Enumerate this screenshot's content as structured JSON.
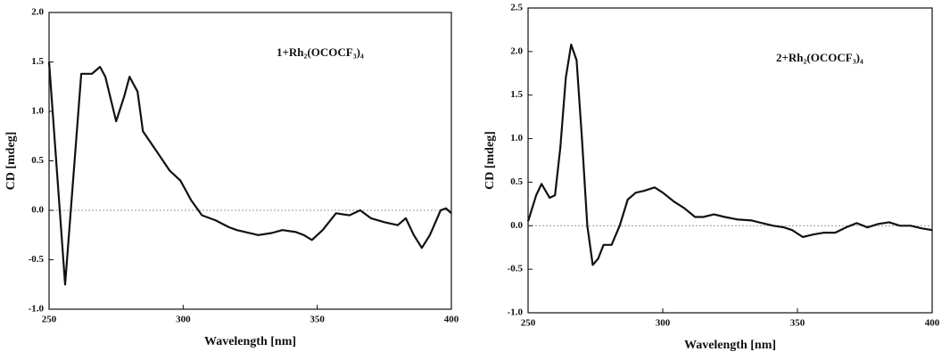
{
  "chart_data": [
    {
      "type": "line",
      "annotation": "1+Rh₂(OCOCF₃)₄",
      "xlabel": "Wavelength [nm]",
      "ylabel": "CD [mdeg]",
      "color": "#111111",
      "x": [
        250,
        256,
        262,
        266,
        269,
        271,
        275,
        278,
        280,
        283,
        285,
        290,
        295,
        299,
        303,
        307,
        312,
        317,
        320,
        328,
        333,
        337,
        342,
        345,
        348,
        352,
        357,
        362,
        366,
        370,
        375,
        380,
        383,
        386,
        389,
        392,
        396,
        398,
        400
      ],
      "values": [
        1.5,
        -0.75,
        1.38,
        1.38,
        1.45,
        1.35,
        0.9,
        1.15,
        1.35,
        1.2,
        0.8,
        0.6,
        0.4,
        0.3,
        0.1,
        -0.05,
        -0.1,
        -0.17,
        -0.2,
        -0.25,
        -0.23,
        -0.2,
        -0.22,
        -0.25,
        -0.3,
        -0.2,
        -0.03,
        -0.05,
        0.0,
        -0.08,
        -0.12,
        -0.15,
        -0.08,
        -0.25,
        -0.38,
        -0.25,
        0.0,
        0.02,
        -0.03
      ],
      "xlim": [
        250,
        400
      ],
      "xticks": [
        250,
        300,
        350,
        400
      ],
      "ylim": [
        -1.0,
        2.0
      ],
      "yticks": [
        {
          "value": -1.0,
          "label": "-1.0"
        },
        {
          "value": -0.5,
          "label": "-0.5"
        },
        {
          "value": 0,
          "label": "0.0"
        },
        {
          "value": 0.5,
          "label": "0.5"
        },
        {
          "value": 1.0,
          "label": "1.0"
        },
        {
          "value": 1.5,
          "label": "1.5"
        },
        {
          "value": 2.0,
          "label": "2.0"
        }
      ]
    },
    {
      "type": "line",
      "annotation": "2+Rh₂(OCOCF₃)₄",
      "xlabel": "Wavelength [nm]",
      "ylabel": "CD [mdeg]",
      "color": "#111111",
      "x": [
        250,
        253,
        255,
        258,
        260,
        262,
        264,
        266,
        268,
        270,
        272,
        274,
        276,
        278,
        281,
        284,
        287,
        290,
        293,
        297,
        300,
        304,
        308,
        312,
        315,
        319,
        323,
        328,
        333,
        337,
        341,
        345,
        348,
        352,
        356,
        360,
        364,
        368,
        372,
        376,
        380,
        384,
        388,
        392,
        396,
        400
      ],
      "values": [
        0.05,
        0.35,
        0.48,
        0.32,
        0.35,
        0.9,
        1.7,
        2.08,
        1.9,
        1.0,
        0.0,
        -0.45,
        -0.38,
        -0.22,
        -0.22,
        0.0,
        0.3,
        0.38,
        0.4,
        0.44,
        0.38,
        0.28,
        0.2,
        0.1,
        0.1,
        0.13,
        0.1,
        0.07,
        0.06,
        0.03,
        0.0,
        -0.02,
        -0.05,
        -0.13,
        -0.1,
        -0.08,
        -0.08,
        -0.02,
        0.03,
        -0.02,
        0.02,
        0.04,
        0.0,
        0.0,
        -0.03,
        -0.05
      ],
      "xlim": [
        250,
        400
      ],
      "xticks": [
        250,
        300,
        350,
        400
      ],
      "ylim": [
        -1.0,
        2.5
      ],
      "yticks": [
        {
          "value": -1.0,
          "label": "-1.0"
        },
        {
          "value": -0.5,
          "label": "-0.5"
        },
        {
          "value": 0,
          "label": "0.0"
        },
        {
          "value": 0.5,
          "label": "0.5"
        },
        {
          "value": 1.0,
          "label": "1.0"
        },
        {
          "value": 1.5,
          "label": "1.5"
        },
        {
          "value": 2.0,
          "label": "2.0"
        },
        {
          "value": 2.5,
          "label": "2.5"
        }
      ]
    }
  ]
}
